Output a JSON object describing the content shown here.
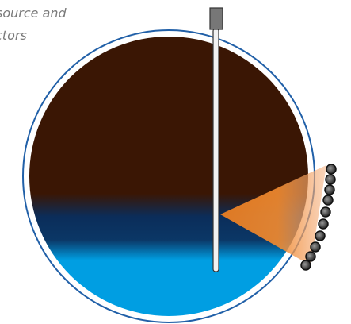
{
  "caption": {
    "lines": [
      "source and",
      "ctors"
    ]
  }
}
